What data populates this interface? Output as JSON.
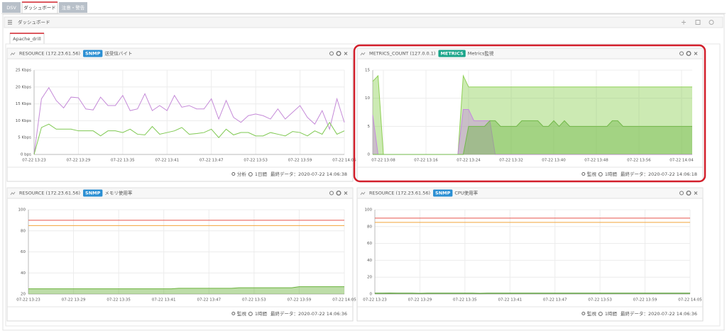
{
  "tabs": [
    "DSV",
    "ダッシュボード",
    "注意・警告"
  ],
  "header": {
    "title": "ダッシュボード"
  },
  "subtab": {
    "label": "Apache_drill"
  },
  "panels": [
    {
      "title": "RESOURCE (172.23.61.56)",
      "badge": "SNMP",
      "badge_color": "#2b8fd3",
      "label": "送受信バイト",
      "mode": "分析",
      "period": "1日間",
      "last_data": "最終データ：2020-07-22 14:06:38"
    },
    {
      "title": "METRICS_COUNT (127.0.0.1)",
      "badge": "METRICS",
      "badge_color": "#1aa58a",
      "label": "Metrics監視",
      "mode": "監視",
      "period": "1時間",
      "last_data": "最終データ：2020-07-22 14:06:18"
    },
    {
      "title": "RESOURCE (172.23.61.56)",
      "badge": "SNMP",
      "badge_color": "#2b8fd3",
      "label": "メモリ使用率",
      "mode": "監視",
      "period": "1時間",
      "last_data": "最終データ：2020-07-22 14:06:36"
    },
    {
      "title": "RESOURCE (172.23.61.56)",
      "badge": "SNMP",
      "badge_color": "#2b8fd3",
      "label": "CPU使用率",
      "mode": "監視",
      "period": "1時間",
      "last_data": "最終データ：2020-07-22 14:06:36"
    }
  ],
  "chart_data": [
    {
      "type": "line",
      "grid": true,
      "categories": [
        "07-22 13:23",
        null,
        null,
        null,
        null,
        null,
        "07-22 13:29",
        null,
        null,
        null,
        null,
        null,
        "07-22 13:35",
        null,
        null,
        null,
        null,
        null,
        "07-22 13:41",
        null,
        null,
        null,
        null,
        null,
        "07-22 13:47",
        null,
        null,
        null,
        null,
        null,
        "07-22 13:53",
        null,
        null,
        null,
        null,
        null,
        "07-22 13:59",
        null,
        null,
        null,
        null,
        null,
        "07-22 14:05"
      ],
      "ylim": [
        0,
        25
      ],
      "yticks": [
        {
          "value": 0,
          "label": "0 bps"
        },
        {
          "value": 5,
          "label": "5 Kbps"
        },
        {
          "value": 10,
          "label": "10 Kbps"
        },
        {
          "value": 15,
          "label": "15 Kbps"
        },
        {
          "value": 20,
          "label": "20 Kbps"
        },
        {
          "value": 25,
          "label": "25 Kbps"
        }
      ],
      "series": [
        {
          "color": "#c58ad8",
          "values": [
            0,
            16.5,
            19.8,
            16,
            13.8,
            17,
            16.8,
            13.5,
            13.2,
            17,
            14.5,
            14.5,
            17.5,
            13,
            13.5,
            18,
            13,
            14.5,
            13,
            17.5,
            14,
            14.5,
            13.5,
            13.5,
            16.5,
            10.5,
            16,
            11,
            9.5,
            11.5,
            12,
            11.5,
            10.5,
            13.5,
            10.5,
            12.5,
            14.5,
            11,
            9,
            13,
            7.5,
            16.5,
            9.5
          ]
        },
        {
          "color": "#7ec850",
          "values": [
            0,
            8,
            9,
            7.5,
            7.5,
            7.5,
            7,
            7,
            7,
            5.5,
            7,
            7,
            6.5,
            7.5,
            6,
            5.8,
            8.3,
            6,
            6.5,
            7,
            8,
            6,
            6.2,
            6.5,
            7.5,
            5,
            7.5,
            5.8,
            6.5,
            6.5,
            5.5,
            5.5,
            6.5,
            6,
            5.5,
            6.8,
            6.5,
            5.5,
            7,
            6,
            9.5,
            6,
            7
          ]
        }
      ]
    },
    {
      "type": "area",
      "grid": true,
      "categories": [
        null,
        null,
        "07-22 13:08",
        null,
        null,
        null,
        null,
        null,
        null,
        null,
        "07-22 13:16",
        null,
        null,
        null,
        null,
        null,
        null,
        null,
        "07-22 13:24",
        null,
        null,
        null,
        null,
        null,
        null,
        null,
        "07-22 13:32",
        null,
        null,
        null,
        null,
        null,
        null,
        null,
        "07-22 13:40",
        null,
        null,
        null,
        null,
        null,
        null,
        null,
        "07-22 13:48",
        null,
        null,
        null,
        null,
        null,
        null,
        null,
        "07-22 13:56",
        null,
        null,
        null,
        null,
        null,
        null,
        null,
        "07-22 14:04",
        null,
        null
      ],
      "ylim": [
        0,
        15
      ],
      "yticks": [
        0,
        5,
        10,
        15
      ],
      "series": [
        {
          "color": "#8fd056",
          "values": [
            13,
            14,
            0,
            0,
            0,
            0,
            0,
            0,
            0,
            0,
            0,
            0,
            0,
            0,
            0,
            0,
            0,
            14,
            12,
            12,
            12,
            12,
            12,
            12,
            12,
            12,
            12,
            12,
            12,
            12,
            12,
            12,
            12,
            12,
            12,
            12,
            12,
            12,
            12,
            12,
            12,
            12,
            12,
            12,
            12,
            12,
            12,
            12,
            12,
            12,
            12,
            12,
            12,
            12,
            12,
            12,
            12,
            12,
            12,
            12,
            12
          ]
        },
        {
          "color": "#c58ae0",
          "values": [
            7,
            0,
            0,
            0,
            0,
            0,
            0,
            0,
            0,
            0,
            0,
            0,
            0,
            0,
            0,
            0,
            0,
            8,
            8,
            6,
            6,
            6,
            6,
            0,
            0,
            0,
            0,
            0,
            0,
            0,
            0,
            0,
            0,
            0,
            0,
            0,
            0,
            0,
            0,
            0,
            0,
            0,
            0,
            0,
            0,
            0,
            0,
            0,
            0,
            0,
            0,
            0,
            0,
            0,
            0,
            0,
            0,
            0,
            0,
            0,
            0
          ]
        },
        {
          "color": "#72b84a",
          "values": [
            0,
            0,
            0,
            0,
            0,
            0,
            0,
            0,
            0,
            0,
            0,
            0,
            0,
            0,
            0,
            0,
            0,
            0,
            5,
            5,
            5,
            5,
            6,
            6,
            5,
            5,
            5,
            5,
            6,
            6,
            6,
            6,
            5,
            5,
            6,
            5,
            6,
            5,
            5,
            5,
            5,
            5,
            5,
            5,
            5,
            6,
            6,
            5,
            5,
            5,
            5,
            5,
            5,
            5,
            5,
            5,
            5,
            5,
            5,
            5,
            5
          ]
        }
      ]
    },
    {
      "type": "area",
      "grid": true,
      "categories": [
        "07-22 13:23",
        null,
        null,
        null,
        null,
        null,
        "07-22 13:29",
        null,
        null,
        null,
        null,
        null,
        "07-22 13:35",
        null,
        null,
        null,
        null,
        null,
        "07-22 13:41",
        null,
        null,
        null,
        null,
        null,
        "07-22 13:47",
        null,
        null,
        null,
        null,
        null,
        "07-22 13:53",
        null,
        null,
        null,
        null,
        null,
        "07-22 13:59",
        null,
        null,
        null,
        null,
        null,
        "07-22 14:05"
      ],
      "ylim": [
        20,
        100
      ],
      "yticks": [
        20,
        40,
        60,
        80,
        100
      ],
      "thresholds": [
        {
          "value": 90,
          "color": "#e8534b"
        },
        {
          "value": 85,
          "color": "#f2a53a"
        }
      ],
      "series": [
        {
          "color": "#6cb33f",
          "values": [
            25,
            25,
            25,
            25,
            25,
            25,
            25,
            25,
            25,
            25,
            25,
            25,
            25,
            25,
            25,
            25,
            25,
            25,
            25,
            25,
            25.5,
            25.5,
            25.5,
            25.5,
            25.5,
            25.5,
            25.5,
            25.5,
            26,
            26,
            26,
            26,
            26,
            26,
            26,
            26,
            27,
            27,
            27,
            27,
            27,
            27,
            27
          ]
        }
      ]
    },
    {
      "type": "area",
      "grid": true,
      "categories": [
        "07-22 13:23",
        null,
        null,
        null,
        null,
        null,
        "07-22 13:29",
        null,
        null,
        null,
        null,
        null,
        "07-22 13:35",
        null,
        null,
        null,
        null,
        null,
        "07-22 13:41",
        null,
        null,
        null,
        null,
        null,
        "07-22 13:47",
        null,
        null,
        null,
        null,
        null,
        "07-22 13:53",
        null,
        null,
        null,
        null,
        null,
        "07-22 13:59",
        null,
        null,
        null,
        null,
        null,
        "07-22 14:05"
      ],
      "ylim": [
        0,
        100
      ],
      "yticks": [
        0,
        20,
        40,
        60,
        80,
        100
      ],
      "thresholds": [
        {
          "value": 90,
          "color": "#e8534b"
        },
        {
          "value": 85,
          "color": "#f2a53a"
        }
      ],
      "series": [
        {
          "color": "#4f9a2a",
          "values": [
            1,
            1,
            1.2,
            1,
            1,
            1,
            0.8,
            1,
            1,
            1,
            1,
            1,
            1,
            1,
            0.8,
            1,
            1,
            1,
            1,
            1,
            1,
            1,
            1,
            1,
            1,
            1,
            1,
            1,
            1,
            1,
            1,
            1,
            1,
            1,
            1,
            1,
            1,
            1,
            1,
            1,
            1,
            1,
            1
          ]
        }
      ]
    }
  ]
}
